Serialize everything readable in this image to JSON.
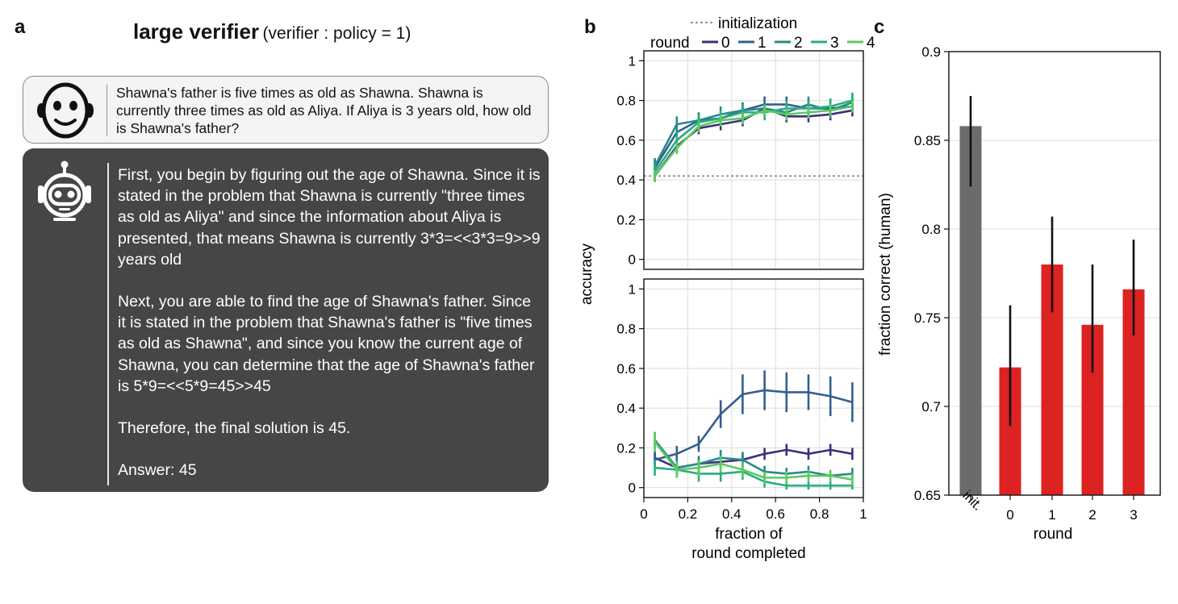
{
  "panels": {
    "a": "a",
    "b": "b",
    "c": "c"
  },
  "header": {
    "title": "large verifier",
    "subtitle": "(verifier : policy = 1)"
  },
  "conversation": {
    "human_icon": "smiling-face-icon",
    "robot_icon": "robot-head-icon",
    "question": "Shawna's father is five times as old as Shawna. Shawna is currently three times as old as Aliya. If Aliya is 3 years old, how old is Shawna's father?",
    "answer_paragraphs": [
      "First, you begin by figuring out the age of Shawna. Since it is stated in the problem that Shawna is currently \"three times as old as Aliya\" and since the information about Aliya is presented, that means Shawna is currently 3*3=<<3*3=9>>9 years old",
      "Next, you are able to find the age of Shawna's father. Since it is stated in the problem that Shawna's father is \"five times as old as Shawna\", and since you know the current age of Shawna, you can determine that the age of Shawna's father is 5*9=<<5*9=45>>45",
      "Therefore, the final solution is 45.",
      "Answer: 45"
    ]
  },
  "chart_data": [
    {
      "type": "line",
      "panel": "b-top",
      "ylabel": "accuracy",
      "xlim": [
        0,
        1
      ],
      "ylim": [
        -0.05,
        1.05
      ],
      "xticks": [
        0,
        0.2,
        0.4,
        0.6,
        0.8,
        1
      ],
      "xtick_labels": [
        "0",
        "0.2",
        "0.4",
        "0.6",
        "0.8",
        "1"
      ],
      "yticks": [
        0,
        0.2,
        0.4,
        0.6,
        0.8,
        1
      ],
      "ytick_labels": [
        "0",
        "0.2",
        "0.4",
        "0.6",
        "0.8",
        "1"
      ],
      "grid": true,
      "legend": {
        "title": "round",
        "placement": "top",
        "baseline_label": "initialization"
      },
      "baseline": 0.42,
      "x": [
        0.05,
        0.15,
        0.25,
        0.35,
        0.45,
        0.55,
        0.65,
        0.75,
        0.85,
        0.95
      ],
      "series": [
        {
          "name": "0",
          "color": "#3e2f7d",
          "values": [
            0.42,
            0.57,
            0.66,
            0.68,
            0.7,
            0.76,
            0.72,
            0.72,
            0.73,
            0.75
          ],
          "err": [
            0.03,
            0.03,
            0.03,
            0.03,
            0.03,
            0.03,
            0.03,
            0.03,
            0.03,
            0.03
          ]
        },
        {
          "name": "1",
          "color": "#33608f",
          "values": [
            0.46,
            0.64,
            0.7,
            0.71,
            0.75,
            0.78,
            0.78,
            0.76,
            0.76,
            0.77
          ],
          "err": [
            0.04,
            0.04,
            0.04,
            0.04,
            0.04,
            0.04,
            0.04,
            0.04,
            0.04,
            0.04
          ]
        },
        {
          "name": "2",
          "color": "#2a8a89",
          "values": [
            0.47,
            0.68,
            0.7,
            0.73,
            0.75,
            0.76,
            0.74,
            0.78,
            0.75,
            0.79
          ],
          "err": [
            0.04,
            0.04,
            0.04,
            0.04,
            0.04,
            0.04,
            0.04,
            0.04,
            0.04,
            0.04
          ]
        },
        {
          "name": "3",
          "color": "#27ad81",
          "values": [
            0.44,
            0.6,
            0.69,
            0.71,
            0.74,
            0.74,
            0.76,
            0.76,
            0.77,
            0.8
          ],
          "err": [
            0.04,
            0.04,
            0.04,
            0.04,
            0.04,
            0.04,
            0.04,
            0.04,
            0.04,
            0.04
          ]
        },
        {
          "name": "4",
          "color": "#5ec962",
          "values": [
            0.42,
            0.56,
            0.67,
            0.7,
            0.71,
            0.75,
            0.73,
            0.74,
            0.75,
            0.77
          ],
          "err": [
            0.03,
            0.03,
            0.03,
            0.03,
            0.03,
            0.03,
            0.03,
            0.03,
            0.03,
            0.03
          ]
        }
      ]
    },
    {
      "type": "line",
      "panel": "b-bottom",
      "xlabel": "fraction of round completed",
      "xlabel_lines": [
        "fraction of",
        "round completed"
      ],
      "xlim": [
        0,
        1
      ],
      "ylim": [
        -0.05,
        1.05
      ],
      "xticks": [
        0,
        0.2,
        0.4,
        0.6,
        0.8,
        1
      ],
      "xtick_labels": [
        "0",
        "0.2",
        "0.4",
        "0.6",
        "0.8",
        "1"
      ],
      "yticks": [
        0,
        0.2,
        0.4,
        0.6,
        0.8,
        1
      ],
      "ytick_labels": [
        "0",
        "0.2",
        "0.4",
        "0.6",
        "0.8",
        "1"
      ],
      "grid": true,
      "x": [
        0.05,
        0.15,
        0.25,
        0.35,
        0.45,
        0.55,
        0.65,
        0.75,
        0.85,
        0.95
      ],
      "series": [
        {
          "name": "0",
          "color": "#3e2f7d",
          "values": [
            0.15,
            0.1,
            0.12,
            0.13,
            0.14,
            0.17,
            0.19,
            0.17,
            0.19,
            0.17
          ],
          "err": [
            0.03,
            0.03,
            0.03,
            0.03,
            0.03,
            0.03,
            0.03,
            0.03,
            0.03,
            0.03
          ]
        },
        {
          "name": "1",
          "color": "#33608f",
          "values": [
            0.14,
            0.17,
            0.22,
            0.37,
            0.47,
            0.49,
            0.48,
            0.48,
            0.46,
            0.43
          ],
          "err": [
            0.04,
            0.04,
            0.04,
            0.07,
            0.1,
            0.1,
            0.1,
            0.09,
            0.1,
            0.1
          ]
        },
        {
          "name": "2",
          "color": "#2a8a89",
          "values": [
            0.24,
            0.1,
            0.12,
            0.15,
            0.14,
            0.08,
            0.07,
            0.08,
            0.06,
            0.07
          ],
          "err": [
            0.04,
            0.04,
            0.04,
            0.04,
            0.04,
            0.03,
            0.03,
            0.03,
            0.03,
            0.03
          ]
        },
        {
          "name": "3",
          "color": "#27ad81",
          "values": [
            0.1,
            0.09,
            0.07,
            0.07,
            0.08,
            0.03,
            0.01,
            0.01,
            0.01,
            0.01
          ],
          "err": [
            0.04,
            0.04,
            0.04,
            0.04,
            0.04,
            0.03,
            0.02,
            0.02,
            0.02,
            0.02
          ]
        },
        {
          "name": "4",
          "color": "#5ec962",
          "values": [
            0.23,
            0.09,
            0.1,
            0.12,
            0.09,
            0.05,
            0.05,
            0.06,
            0.06,
            0.04
          ],
          "err": [
            0.05,
            0.04,
            0.04,
            0.04,
            0.04,
            0.03,
            0.03,
            0.03,
            0.03,
            0.03
          ]
        }
      ]
    },
    {
      "type": "bar",
      "panel": "c",
      "ylabel": "fraction correct (human)",
      "xlabel": "round",
      "ylim": [
        0.65,
        0.9
      ],
      "yticks": [
        0.65,
        0.7,
        0.75,
        0.8,
        0.85,
        0.9
      ],
      "ytick_labels": [
        "0.65",
        "0.7",
        "0.75",
        "0.8",
        "0.85",
        "0.9"
      ],
      "grid": true,
      "categories": [
        "init.",
        "0",
        "1",
        "2",
        "3"
      ],
      "values": [
        0.858,
        0.722,
        0.78,
        0.746,
        0.766
      ],
      "err_low": [
        0.824,
        0.689,
        0.753,
        0.719,
        0.74
      ],
      "err_high": [
        0.875,
        0.757,
        0.807,
        0.78,
        0.794
      ],
      "colors": [
        "#6b6b6b",
        "#dd2222",
        "#dd2222",
        "#dd2222",
        "#dd2222"
      ]
    }
  ]
}
